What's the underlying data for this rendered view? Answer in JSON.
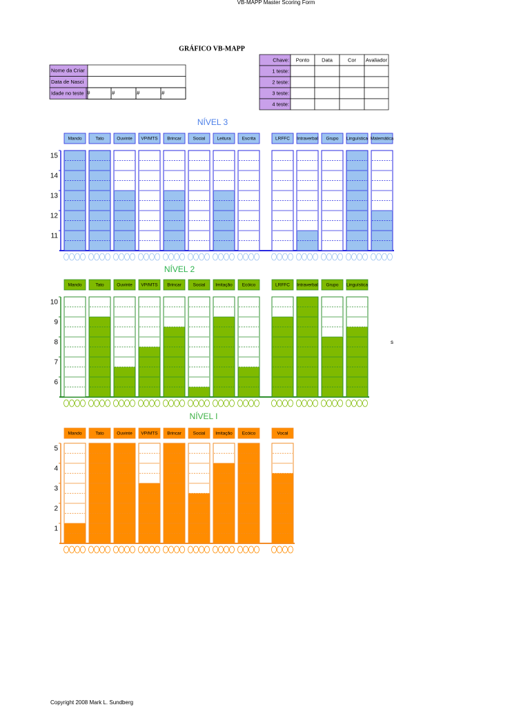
{
  "header": {
    "top": "VB-MAPP Master Scoring Form",
    "title": "GRÁFICO VB-MAPP"
  },
  "form": {
    "rows": [
      "Nome da Criar",
      "Data de Nasci",
      "Idade no teste"
    ],
    "age_marks": [
      "#",
      "#",
      "#",
      "#"
    ]
  },
  "key": {
    "header": [
      "Chave:",
      "Ponto",
      "Data",
      "Cor",
      "Avaliador"
    ],
    "rows": [
      "1 teste:",
      "2 teste:",
      "3 teste:",
      "4 teste:"
    ]
  },
  "levels": [
    {
      "title": "NÍVEL 3",
      "title_color": "#4a7ee8",
      "color": "#9cc3f0",
      "border": "#2828e0",
      "categories": [
        "Mando",
        "Tato",
        "Ouvinte",
        "VP/MTS",
        "Brincar",
        "Social",
        "Leitura",
        "Escrita",
        "LRFFC",
        "Intraverbal",
        "Grupo",
        "Linguística",
        "Matemática"
      ],
      "values": [
        15,
        15,
        13,
        10,
        13,
        10,
        13,
        10,
        10,
        11,
        10,
        15,
        12
      ],
      "ylim": [
        10,
        15
      ],
      "yticks": [
        11,
        12,
        13,
        14,
        15
      ]
    },
    {
      "title": "NÍVEL 2",
      "title_color": "#2bb24c",
      "color": "#7fba00",
      "border": "#2d8f2d",
      "categories": [
        "Mando",
        "Tato",
        "Ouvinte",
        "VP/MTS",
        "Brincar",
        "Social",
        "Imitação",
        "Ecóico",
        "LRFFC",
        "Intraverbal",
        "Grupo",
        "Linguística"
      ],
      "values": [
        5,
        9,
        6.5,
        7.5,
        8.5,
        5.5,
        9,
        6.5,
        9,
        10,
        8,
        8.5
      ],
      "ylim": [
        5,
        10
      ],
      "yticks": [
        6,
        7,
        8,
        9,
        10
      ]
    },
    {
      "title": "NÍVEL I",
      "title_color": "#3cb043",
      "color": "#ff8c00",
      "border": "#f28c28",
      "categories": [
        "Mando",
        "Tato",
        "Ouvinte",
        "VP/MTS",
        "Brincar",
        "Social",
        "Imitação",
        "Ecóico",
        "Vocal"
      ],
      "values": [
        1,
        5,
        5,
        3,
        5,
        2.5,
        4,
        5,
        3.5
      ],
      "ylim": [
        0,
        5
      ],
      "yticks": [
        1,
        2,
        3,
        4,
        5
      ]
    }
  ],
  "note": "s",
  "copyright": "Copyright 2008 Mark L. Sundberg"
}
